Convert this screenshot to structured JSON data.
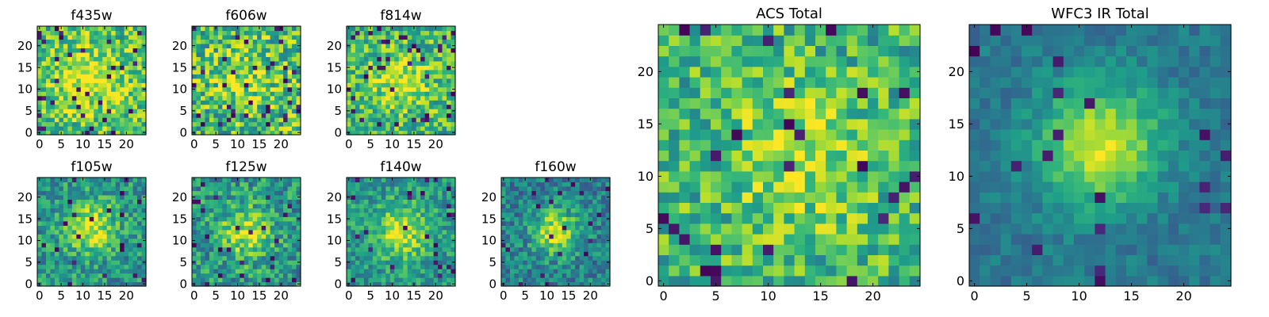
{
  "figure": {
    "colormap": "viridis",
    "colors": {
      "viridis_low": "#440154",
      "viridis_mid": "#21908d",
      "viridis_high": "#fde725",
      "axis": "#000000",
      "background": "#ffffff"
    }
  },
  "chart_data": [
    {
      "type": "heatmap",
      "title": "f435w",
      "grid_size": 25,
      "xlim": [
        0,
        24
      ],
      "ylim": [
        0,
        24
      ],
      "xticks": [
        0,
        5,
        10,
        15,
        20
      ],
      "yticks": [
        0,
        5,
        10,
        15,
        20
      ],
      "center": [
        12,
        12
      ],
      "peak": 0.25,
      "width": 5.5,
      "base": 0.7,
      "noise": 0.26,
      "dark_pixel_rate": 0.05,
      "seed": 11
    },
    {
      "type": "heatmap",
      "title": "f606w",
      "grid_size": 25,
      "xlim": [
        0,
        24
      ],
      "ylim": [
        0,
        24
      ],
      "xticks": [
        0,
        5,
        10,
        15,
        20
      ],
      "yticks": [
        0,
        5,
        10,
        15,
        20
      ],
      "center": [
        11,
        13
      ],
      "peak": 0.2,
      "width": 5.0,
      "base": 0.68,
      "noise": 0.3,
      "dark_pixel_rate": 0.06,
      "seed": 22
    },
    {
      "type": "heatmap",
      "title": "f814w",
      "grid_size": 25,
      "xlim": [
        0,
        24
      ],
      "ylim": [
        0,
        24
      ],
      "xticks": [
        0,
        5,
        10,
        15,
        20
      ],
      "yticks": [
        0,
        5,
        10,
        15,
        20
      ],
      "center": [
        12,
        12
      ],
      "peak": 0.3,
      "width": 4.0,
      "base": 0.68,
      "noise": 0.26,
      "dark_pixel_rate": 0.05,
      "seed": 33
    },
    {
      "type": "heatmap",
      "title": "f105w",
      "grid_size": 25,
      "xlim": [
        0,
        24
      ],
      "ylim": [
        0,
        24
      ],
      "xticks": [
        0,
        5,
        10,
        15,
        20
      ],
      "yticks": [
        0,
        5,
        10,
        15,
        20
      ],
      "center": [
        12,
        13
      ],
      "peak": 0.4,
      "width": 4.2,
      "base": 0.52,
      "noise": 0.22,
      "dark_pixel_rate": 0.04,
      "seed": 44
    },
    {
      "type": "heatmap",
      "title": "f125w",
      "grid_size": 25,
      "xlim": [
        0,
        24
      ],
      "ylim": [
        0,
        24
      ],
      "xticks": [
        0,
        5,
        10,
        15,
        20
      ],
      "yticks": [
        0,
        5,
        10,
        15,
        20
      ],
      "center": [
        12,
        12
      ],
      "peak": 0.4,
      "width": 4.2,
      "base": 0.52,
      "noise": 0.24,
      "dark_pixel_rate": 0.05,
      "seed": 55
    },
    {
      "type": "heatmap",
      "title": "f140w",
      "grid_size": 25,
      "xlim": [
        0,
        24
      ],
      "ylim": [
        0,
        24
      ],
      "xticks": [
        0,
        5,
        10,
        15,
        20
      ],
      "yticks": [
        0,
        5,
        10,
        15,
        20
      ],
      "center": [
        12,
        12
      ],
      "peak": 0.4,
      "width": 4.5,
      "base": 0.52,
      "noise": 0.2,
      "dark_pixel_rate": 0.04,
      "seed": 66
    },
    {
      "type": "heatmap",
      "title": "f160w",
      "grid_size": 25,
      "xlim": [
        0,
        24
      ],
      "ylim": [
        0,
        24
      ],
      "xticks": [
        0,
        5,
        10,
        15,
        20
      ],
      "yticks": [
        0,
        5,
        10,
        15,
        20
      ],
      "center": [
        12,
        12
      ],
      "peak": 0.5,
      "width": 3.6,
      "base": 0.44,
      "noise": 0.2,
      "dark_pixel_rate": 0.04,
      "seed": 77
    },
    {
      "type": "heatmap",
      "title": "ACS Total",
      "grid_size": 25,
      "xlim": [
        0,
        24
      ],
      "ylim": [
        0,
        24
      ],
      "xticks": [
        0,
        5,
        10,
        15,
        20
      ],
      "yticks": [
        0,
        5,
        10,
        15,
        20
      ],
      "center": [
        13,
        12
      ],
      "peak": 0.25,
      "width": 4.5,
      "base": 0.66,
      "noise": 0.24,
      "dark_pixel_rate": 0.04,
      "seed": 88
    },
    {
      "type": "heatmap",
      "title": "WFC3 IR Total",
      "grid_size": 25,
      "xlim": [
        0,
        24
      ],
      "ylim": [
        0,
        24
      ],
      "xticks": [
        0,
        5,
        10,
        15,
        20
      ],
      "yticks": [
        0,
        5,
        10,
        15,
        20
      ],
      "center": [
        12,
        13
      ],
      "peak": 0.55,
      "width": 4.0,
      "base": 0.4,
      "noise": 0.1,
      "dark_pixel_rate": 0.03,
      "seed": 99
    }
  ]
}
